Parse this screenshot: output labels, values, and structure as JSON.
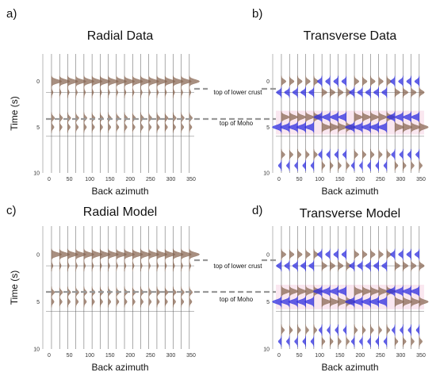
{
  "colors": {
    "positive": "#8b6a55",
    "negative": "#2e2ee0",
    "grid": "#555555",
    "dashed": "#999999",
    "pink": "#f5c9dd"
  },
  "annotations": {
    "lower_crust": "top of lower crust",
    "moho": "top of Moho"
  },
  "chart_data": [
    {
      "type": "line",
      "panel": "a)",
      "title": "Radial Data",
      "xlabel": "Back azimuth",
      "ylabel": "Time (s)",
      "x_ticks": [
        0,
        50,
        100,
        150,
        200,
        250,
        300,
        350
      ],
      "y_ticks": [
        0,
        5,
        10
      ],
      "ylim": [
        -3,
        10
      ],
      "traces_baz": [
        0,
        20,
        40,
        60,
        80,
        100,
        120,
        140,
        160,
        180,
        200,
        220,
        240,
        260,
        280,
        300,
        320,
        340
      ],
      "pulses": [
        {
          "time": 0.0,
          "amplitude": 1.0,
          "sign": "positive"
        },
        {
          "time": 1.2,
          "amplitude": 0.15,
          "sign": "positive"
        },
        {
          "time": 4.0,
          "amplitude": 0.3,
          "sign": "positive"
        },
        {
          "time": 5.0,
          "amplitude": 0.25,
          "sign": "positive"
        }
      ]
    },
    {
      "type": "line",
      "panel": "b)",
      "title": "Transverse Data",
      "xlabel": "Back azimuth",
      "ylabel": "",
      "x_ticks": [
        0,
        50,
        100,
        150,
        200,
        250,
        300,
        350
      ],
      "y_ticks": [
        0,
        5,
        10
      ],
      "ylim": [
        -3,
        10
      ],
      "traces_baz": [
        0,
        20,
        40,
        60,
        80,
        100,
        120,
        140,
        160,
        180,
        200,
        220,
        240,
        260,
        280,
        300,
        320,
        340
      ],
      "pulses": [
        {
          "time": 0.0,
          "amplitude": 0.45,
          "sign": "alternating"
        },
        {
          "time": 1.2,
          "amplitude": 0.5,
          "sign": "alternating_reverse"
        },
        {
          "time": 3.9,
          "amplitude": 0.8,
          "sign": "alternating"
        },
        {
          "time": 5.0,
          "amplitude": 0.9,
          "sign": "alternating_reverse"
        },
        {
          "time": 8.0,
          "amplitude": 0.35,
          "sign": "alternating"
        },
        {
          "time": 9.2,
          "amplitude": 0.3,
          "sign": "alternating_reverse"
        }
      ]
    },
    {
      "type": "line",
      "panel": "c)",
      "title": "Radial Model",
      "xlabel": "Back azimuth",
      "ylabel": "Time (s)",
      "x_ticks": [
        0,
        50,
        100,
        150,
        200,
        250,
        300,
        350
      ],
      "y_ticks": [
        0,
        5,
        10
      ],
      "ylim": [
        -3,
        10
      ],
      "traces_baz": [
        0,
        20,
        40,
        60,
        80,
        100,
        120,
        140,
        160,
        180,
        200,
        220,
        240,
        260,
        280,
        300,
        320,
        340
      ],
      "pulses": [
        {
          "time": 0.0,
          "amplitude": 1.0,
          "sign": "positive"
        },
        {
          "time": 1.2,
          "amplitude": 0.15,
          "sign": "positive"
        },
        {
          "time": 4.0,
          "amplitude": 0.3,
          "sign": "positive"
        },
        {
          "time": 5.0,
          "amplitude": 0.25,
          "sign": "positive"
        }
      ]
    },
    {
      "type": "line",
      "panel": "d)",
      "title": "Transverse Model",
      "xlabel": "Back azimuth",
      "ylabel": "",
      "x_ticks": [
        0,
        50,
        100,
        150,
        200,
        250,
        300,
        350
      ],
      "y_ticks": [
        0,
        5,
        10
      ],
      "ylim": [
        -3,
        10
      ],
      "traces_baz": [
        0,
        20,
        40,
        60,
        80,
        100,
        120,
        140,
        160,
        180,
        200,
        220,
        240,
        260,
        280,
        300,
        320,
        340
      ],
      "pulses": [
        {
          "time": 0.0,
          "amplitude": 0.45,
          "sign": "alternating"
        },
        {
          "time": 1.2,
          "amplitude": 0.5,
          "sign": "alternating_reverse"
        },
        {
          "time": 3.9,
          "amplitude": 0.85,
          "sign": "alternating"
        },
        {
          "time": 5.0,
          "amplitude": 0.9,
          "sign": "alternating_reverse"
        },
        {
          "time": 8.0,
          "amplitude": 0.3,
          "sign": "alternating"
        },
        {
          "time": 9.2,
          "amplitude": 0.3,
          "sign": "alternating_reverse"
        }
      ]
    }
  ]
}
